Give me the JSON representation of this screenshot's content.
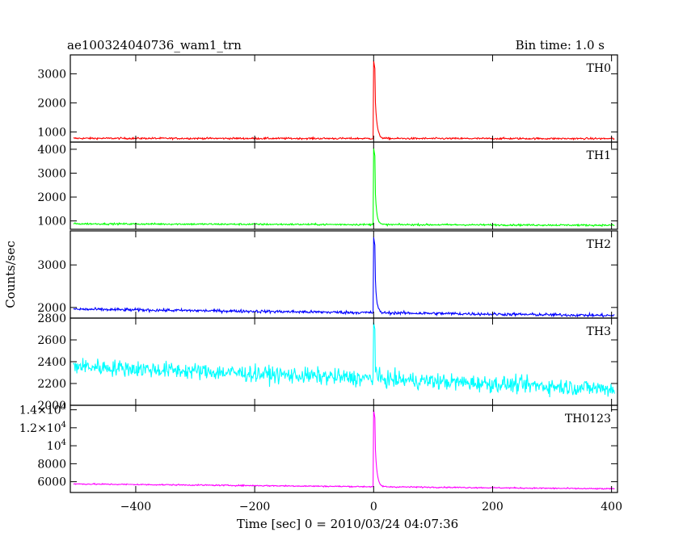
{
  "header": {
    "title": "ae100324040736_wam1_trn",
    "bin_time": "Bin time: 1.0 s"
  },
  "axes": {
    "xlabel": "Time [sec] 0 = 2010/03/24 04:07:36",
    "ylabel": "Counts/sec"
  },
  "chart_data": {
    "type": "line",
    "title": "ae100324040736_wam1_trn",
    "xlabel": "Time [sec] 0 = 2010/03/24 04:07:36",
    "ylabel": "Counts/sec",
    "xlim": [
      -510,
      410
    ],
    "x_ticks": [
      -400,
      -200,
      0,
      200,
      400
    ],
    "x_tick_labels": [
      "−400",
      "−200",
      "0",
      "200",
      "400"
    ],
    "grid": false,
    "panels": [
      {
        "name": "TH0",
        "color": "#ff0000",
        "ylim": [
          650,
          3650
        ],
        "y_ticks": [
          1000,
          2000,
          3000
        ],
        "y_tick_labels": [
          "1000",
          "2000",
          "3000"
        ],
        "baseline_start": 780,
        "baseline_end": 770,
        "noise": 30,
        "burst_peak": 3450,
        "decay_sec": 3
      },
      {
        "name": "TH1",
        "color": "#00ff00",
        "ylim": [
          650,
          4300
        ],
        "y_ticks": [
          1000,
          2000,
          3000,
          4000
        ],
        "y_tick_labels": [
          "1000",
          "2000",
          "3000",
          "4000"
        ],
        "baseline_start": 880,
        "baseline_end": 820,
        "noise": 35,
        "burst_peak": 4050,
        "decay_sec": 2.5
      },
      {
        "name": "TH2",
        "color": "#0000ff",
        "ylim": [
          1750,
          3800
        ],
        "y_ticks": [
          2000,
          3000
        ],
        "y_tick_labels": [
          "2000",
          "3000"
        ],
        "baseline_start": 1960,
        "baseline_end": 1810,
        "noise": 35,
        "burst_peak": 3650,
        "decay_sec": 2.5
      },
      {
        "name": "TH3",
        "color": "#00ffff",
        "ylim": [
          2000,
          2800
        ],
        "y_ticks": [
          2000,
          2200,
          2400,
          2600,
          2800
        ],
        "y_tick_labels": [
          "2000",
          "2200",
          "2400",
          "2600",
          "2800"
        ],
        "baseline_start": 2360,
        "baseline_end": 2150,
        "noise": 75,
        "burst_peak": 2760,
        "decay_sec": 1.5
      },
      {
        "name": "TH0123",
        "color": "#ff00ff",
        "ylim": [
          4800,
          14500
        ],
        "y_ticks": [
          6000,
          8000,
          10000,
          12000,
          14000
        ],
        "y_tick_labels": [
          "6000",
          "8000",
          "10^4",
          "1.2×10^4",
          "1.4×10^4"
        ],
        "baseline_start": 5750,
        "baseline_end": 5200,
        "noise": 70,
        "burst_peak": 14000,
        "decay_sec": 3
      }
    ]
  }
}
